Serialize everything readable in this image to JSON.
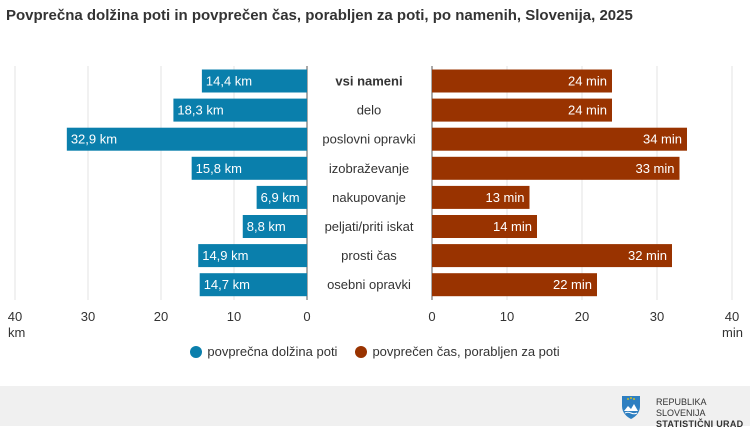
{
  "title": "Povprečna dolžina poti in povprečen čas, porabljen za poti, po namenih, Slovenija, 2025",
  "chart_data": [
    {
      "type": "bar",
      "orientation": "horizontal",
      "direction": "right-to-left",
      "name": "povprečna dolžina poti",
      "categories": [
        "vsi nameni",
        "delo",
        "poslovni opravki",
        "izobraževanje",
        "nakupovanje",
        "peljati/priti iskat",
        "prosti čas",
        "osebni opravki"
      ],
      "values": [
        14.4,
        18.3,
        32.9,
        15.8,
        6.9,
        8.8,
        14.9,
        14.7
      ],
      "data_labels": [
        "14,4 km",
        "18,3 km",
        "32,9 km",
        "15,8 km",
        "6,9 km",
        "8,8 km",
        "14,9 km",
        "14,7 km"
      ],
      "xlim": [
        0,
        40
      ],
      "ticks": [
        "40",
        "30",
        "20",
        "10",
        "0"
      ],
      "tick_values": [
        40,
        30,
        20,
        10,
        0
      ],
      "unit_label": "km",
      "color": "#0a7fac",
      "grid": true
    },
    {
      "type": "bar",
      "orientation": "horizontal",
      "direction": "left-to-right",
      "name": "povprečen čas, porabljen za poti",
      "categories": [
        "vsi nameni",
        "delo",
        "poslovni opravki",
        "izobraževanje",
        "nakupovanje",
        "peljati/priti iskat",
        "prosti čas",
        "osebni opravki"
      ],
      "values": [
        24,
        24,
        34,
        33,
        13,
        14,
        32,
        22
      ],
      "data_labels": [
        "24 min",
        "24 min",
        "34 min",
        "33 min",
        "13 min",
        "14 min",
        "32 min",
        "22 min"
      ],
      "xlim": [
        0,
        40
      ],
      "ticks": [
        "0",
        "10",
        "20",
        "30",
        "40"
      ],
      "tick_values": [
        0,
        10,
        20,
        30,
        40
      ],
      "unit_label": "min",
      "color": "#993300",
      "grid": true
    }
  ],
  "category_labels": [
    "vsi nameni",
    "delo",
    "poslovni opravki",
    "izobraževanje",
    "nakupovanje",
    "peljati/priti iskat",
    "prosti čas",
    "osebni opravki"
  ],
  "bold_category_index": 0,
  "legend": [
    {
      "label": "povprečna dolžina poti",
      "color": "#0a7fac"
    },
    {
      "label": "povprečen čas, porabljen za poti",
      "color": "#993300"
    }
  ],
  "legend_position": "bottom",
  "footer": {
    "line1": "REPUBLIKA SLOVENIJA",
    "line2": "STATISTIČNI URAD"
  }
}
